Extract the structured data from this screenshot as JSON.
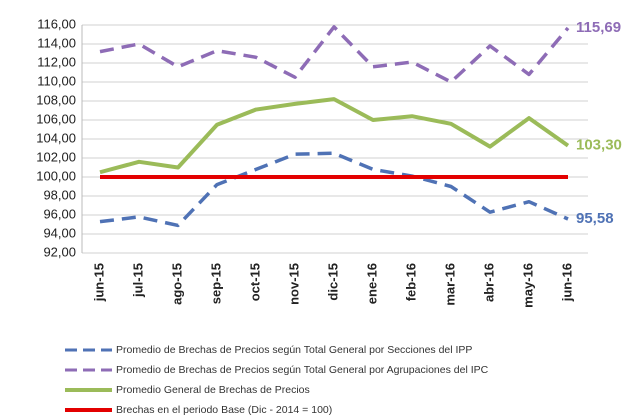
{
  "chart_data": {
    "type": "line",
    "categories": [
      "jun-15",
      "jul-15",
      "ago-15",
      "sep-15",
      "oct-15",
      "nov-15",
      "dic-15",
      "ene-16",
      "feb-16",
      "mar-16",
      "abr-16",
      "may-16",
      "jun-16"
    ],
    "ylim": [
      92,
      116
    ],
    "yticks": [
      {
        "value": 92,
        "label": "92,00"
      },
      {
        "value": 94,
        "label": "94,00"
      },
      {
        "value": 96,
        "label": "96,00"
      },
      {
        "value": 98,
        "label": "98,00"
      },
      {
        "value": 100,
        "label": "100,00"
      },
      {
        "value": 102,
        "label": "102,00"
      },
      {
        "value": 104,
        "label": "104,00"
      },
      {
        "value": 106,
        "label": "106,00"
      },
      {
        "value": 108,
        "label": "108,00"
      },
      {
        "value": 110,
        "label": "110,00"
      },
      {
        "value": 112,
        "label": "112,00"
      },
      {
        "value": 114,
        "label": "114,00"
      },
      {
        "value": 116,
        "label": "116,00"
      }
    ],
    "grid": true,
    "series": [
      {
        "name": "Promedio de Brechas de Precios según Total General por Secciones del IPP",
        "color": "#4f72b5",
        "dashed": true,
        "values": [
          95.3,
          95.8,
          94.9,
          99.2,
          100.8,
          102.4,
          102.5,
          100.8,
          100.1,
          99.0,
          96.3,
          97.4,
          95.58
        ],
        "value_labels": [
          null,
          null,
          null,
          null,
          null,
          null,
          null,
          null,
          null,
          null,
          null,
          null,
          "95,58"
        ]
      },
      {
        "name": "Promedio de Brechas de Precios según Total General por Agrupaciones del IPC",
        "color": "#8e6cb6",
        "dashed": true,
        "values": [
          113.2,
          114.0,
          111.6,
          113.3,
          112.6,
          110.5,
          115.8,
          111.6,
          112.1,
          110.0,
          113.8,
          110.8,
          115.69
        ],
        "value_labels": [
          null,
          null,
          null,
          null,
          null,
          null,
          null,
          null,
          null,
          null,
          null,
          null,
          "115,69"
        ]
      },
      {
        "name": "Promedio General de Brechas de Precios",
        "color": "#9bbb59",
        "dashed": false,
        "values": [
          100.5,
          101.6,
          101.0,
          105.5,
          107.1,
          107.7,
          108.2,
          106.0,
          106.4,
          105.6,
          103.2,
          106.2,
          103.3
        ],
        "value_labels": [
          null,
          null,
          null,
          null,
          null,
          null,
          null,
          null,
          null,
          null,
          null,
          null,
          "103,30"
        ]
      },
      {
        "name": "Brechas en el periodo Base (Dic - 2014 = 100)",
        "color": "#e30000",
        "dashed": false,
        "values": [
          100,
          100,
          100,
          100,
          100,
          100,
          100,
          100,
          100,
          100,
          100,
          100,
          100
        ]
      }
    ]
  }
}
